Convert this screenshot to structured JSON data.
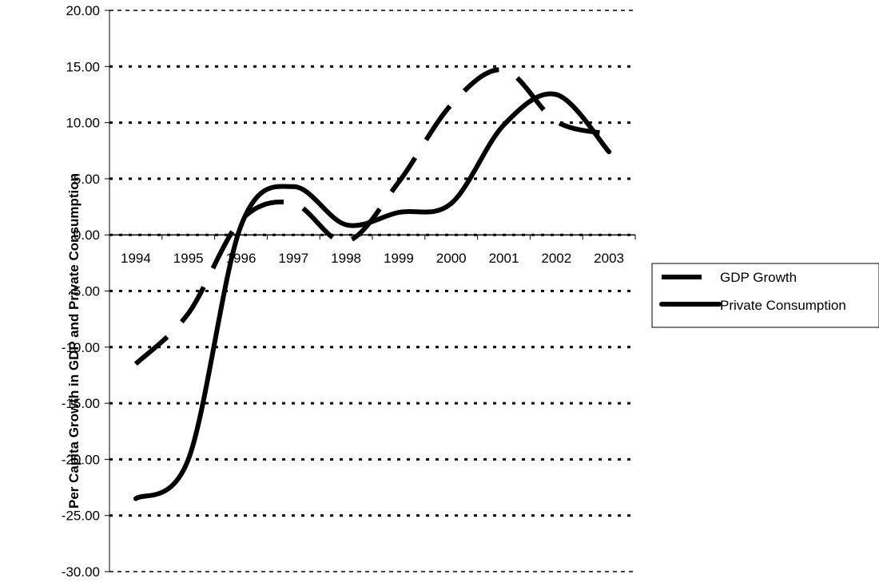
{
  "chart_data": {
    "type": "line",
    "title": "",
    "xlabel": "",
    "ylabel": "Per Capita Growth in GDP and Private Consumption",
    "categories": [
      "1994",
      "1995",
      "1996",
      "1997",
      "1998",
      "1999",
      "2000",
      "2001",
      "2002",
      "2003"
    ],
    "ylim": [
      -30,
      20
    ],
    "yticks": [
      20,
      15,
      10,
      5,
      0,
      -5,
      -10,
      -15,
      -20,
      -25,
      -30
    ],
    "ytick_labels": [
      "20.00",
      "15.00",
      "10.00",
      "5.00",
      "0.00",
      "-5.00",
      "-10.00",
      "-15.00",
      "-20.00",
      "-25.00",
      "-30.00"
    ],
    "grid": true,
    "legend_position": "right",
    "series": [
      {
        "name": "GDP Growth",
        "style": "dashed",
        "color": "#000000",
        "values": [
          -11.5,
          -7.0,
          1.3,
          2.8,
          -0.6,
          4.7,
          11.6,
          14.7,
          10.1,
          9.0
        ]
      },
      {
        "name": "Private Consumption",
        "style": "solid",
        "color": "#000000",
        "values": [
          -23.5,
          -20.0,
          0.8,
          4.3,
          0.9,
          2.0,
          2.8,
          9.8,
          12.5,
          7.4
        ]
      }
    ]
  }
}
